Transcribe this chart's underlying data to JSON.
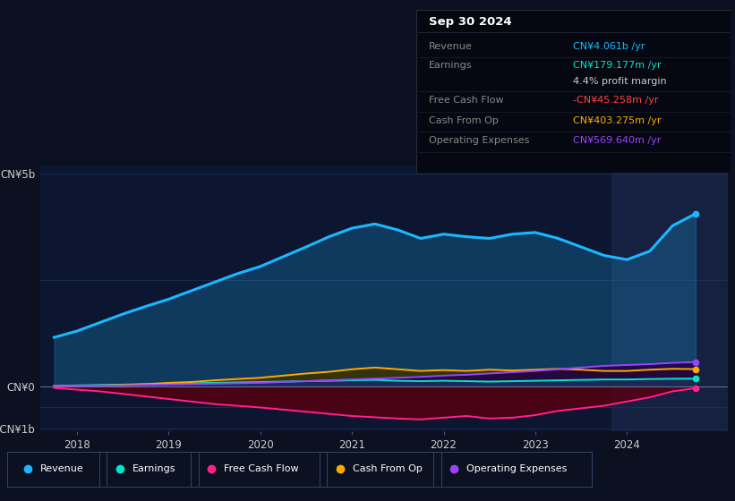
{
  "bg_color": "#0b1120",
  "plot_bg_color": "#0d1630",
  "highlight_bg": "#162040",
  "title": "Sep 30 2024",
  "ylabel_top": "CN¥5b",
  "ylabel_zero": "CN¥0",
  "ylabel_bottom": "-CN¥1b",
  "x_labels": [
    "2018",
    "2019",
    "2020",
    "2021",
    "2022",
    "2023",
    "2024"
  ],
  "colors": {
    "revenue": "#1ab8ff",
    "earnings": "#00e5cc",
    "free_cash_flow": "#ff2288",
    "cash_from_op": "#ffaa00",
    "operating_expenses": "#9944ff"
  },
  "legend": [
    {
      "label": "Revenue",
      "color": "#1ab8ff"
    },
    {
      "label": "Earnings",
      "color": "#00e5cc"
    },
    {
      "label": "Free Cash Flow",
      "color": "#ff2288"
    },
    {
      "label": "Cash From Op",
      "color": "#ffaa00"
    },
    {
      "label": "Operating Expenses",
      "color": "#9944ff"
    }
  ],
  "x": [
    2017.75,
    2018.0,
    2018.25,
    2018.5,
    2018.75,
    2019.0,
    2019.25,
    2019.5,
    2019.75,
    2020.0,
    2020.25,
    2020.5,
    2020.75,
    2021.0,
    2021.25,
    2021.5,
    2021.75,
    2022.0,
    2022.25,
    2022.5,
    2022.75,
    2023.0,
    2023.25,
    2023.5,
    2023.75,
    2024.0,
    2024.25,
    2024.5,
    2024.75
  ],
  "revenue": [
    1.15,
    1.3,
    1.5,
    1.7,
    1.88,
    2.05,
    2.25,
    2.45,
    2.65,
    2.82,
    3.05,
    3.28,
    3.52,
    3.72,
    3.82,
    3.68,
    3.48,
    3.58,
    3.52,
    3.48,
    3.58,
    3.62,
    3.48,
    3.28,
    3.08,
    2.98,
    3.18,
    3.78,
    4.061
  ],
  "earnings": [
    0.01,
    0.02,
    0.03,
    0.04,
    0.05,
    0.06,
    0.07,
    0.08,
    0.09,
    0.1,
    0.11,
    0.12,
    0.13,
    0.14,
    0.15,
    0.13,
    0.12,
    0.13,
    0.12,
    0.11,
    0.12,
    0.13,
    0.14,
    0.15,
    0.16,
    0.16,
    0.17,
    0.178,
    0.1792
  ],
  "free_cash_flow": [
    -0.04,
    -0.08,
    -0.12,
    -0.18,
    -0.24,
    -0.3,
    -0.36,
    -0.42,
    -0.46,
    -0.5,
    -0.55,
    -0.6,
    -0.65,
    -0.7,
    -0.73,
    -0.76,
    -0.78,
    -0.74,
    -0.7,
    -0.76,
    -0.74,
    -0.68,
    -0.58,
    -0.52,
    -0.46,
    -0.36,
    -0.26,
    -0.12,
    -0.04526
  ],
  "cash_from_op": [
    0.005,
    0.01,
    0.02,
    0.03,
    0.05,
    0.08,
    0.1,
    0.14,
    0.17,
    0.2,
    0.25,
    0.3,
    0.34,
    0.4,
    0.44,
    0.4,
    0.36,
    0.38,
    0.36,
    0.39,
    0.37,
    0.39,
    0.41,
    0.39,
    0.36,
    0.36,
    0.39,
    0.41,
    0.40328
  ],
  "operating_expenses": [
    0.005,
    0.01,
    0.015,
    0.02,
    0.03,
    0.04,
    0.05,
    0.06,
    0.07,
    0.08,
    0.1,
    0.12,
    0.14,
    0.16,
    0.18,
    0.2,
    0.22,
    0.25,
    0.27,
    0.3,
    0.33,
    0.36,
    0.4,
    0.44,
    0.48,
    0.5,
    0.52,
    0.55,
    0.56964
  ],
  "ylim": [
    -1.05,
    5.2
  ],
  "xlim_left": 2017.6,
  "xlim_right": 2025.1,
  "highlight_x_start": 2023.83,
  "highlight_x_end": 2025.1,
  "grid_lines": [
    5.0,
    2.5,
    0.0,
    -0.5,
    -1.0
  ],
  "info_box_rows": [
    {
      "label": "Revenue",
      "value": "CN¥4.061b /yr",
      "label_color": "#888888",
      "value_color": "#1ab8ff"
    },
    {
      "label": "Earnings",
      "value": "CN¥179.177m /yr",
      "label_color": "#888888",
      "value_color": "#00e5cc"
    },
    {
      "label": "",
      "value": "4.4% profit margin",
      "label_color": "#888888",
      "value_color": "#cccccc"
    },
    {
      "label": "Free Cash Flow",
      "value": "-CN¥45.258m /yr",
      "label_color": "#888888",
      "value_color": "#ff4444"
    },
    {
      "label": "Cash From Op",
      "value": "CN¥403.275m /yr",
      "label_color": "#888888",
      "value_color": "#ffaa00"
    },
    {
      "label": "Operating Expenses",
      "value": "CN¥569.640m /yr",
      "label_color": "#888888",
      "value_color": "#9944ff"
    }
  ]
}
